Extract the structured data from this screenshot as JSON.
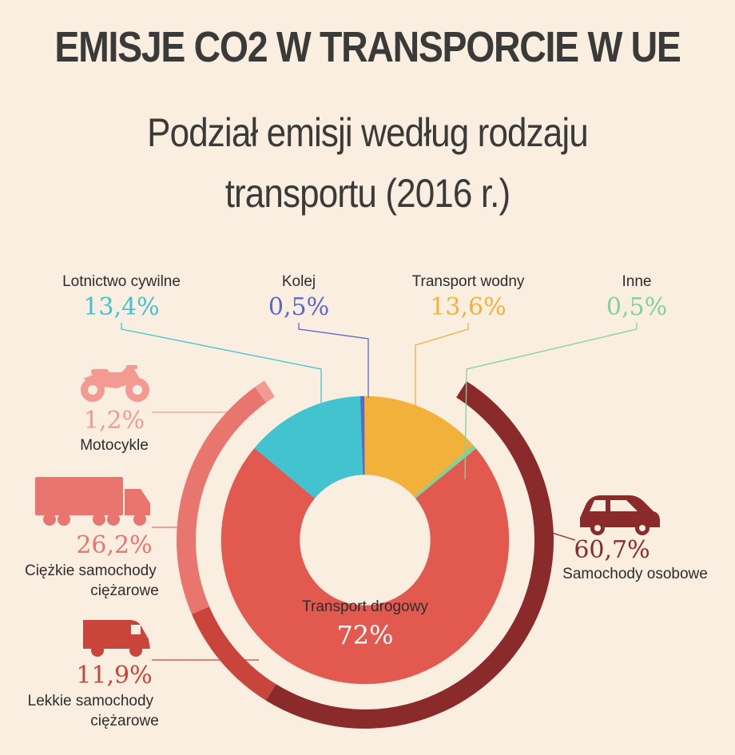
{
  "title": "EMISJE CO2 W TRANSPORCIE W UE",
  "subtitle_line1": "Podział emisji według rodzaju",
  "subtitle_line2": "transportu (2016 r.)",
  "colors": {
    "background": "#f9eee0",
    "road": "#e25a4f",
    "aviation": "#42c3cf",
    "rail": "#5a69c8",
    "water": "#f2b13a",
    "other": "#7fd39a",
    "cars": "#8b2a2a",
    "heavy_trucks": "#e9756f",
    "light_trucks": "#c9453c",
    "motorcycles": "#f39a93"
  },
  "chart_data": [
    {
      "type": "pie",
      "variant": "donut",
      "slices": [
        {
          "label": "Transport drogowy",
          "value": 72,
          "value_label": "72%",
          "color": "#e25a4f",
          "icon": "none"
        },
        {
          "label": "Lotnictwo cywilne",
          "value": 13.4,
          "value_label": "13,4%",
          "color": "#42c3cf",
          "icon": "none"
        },
        {
          "label": "Kolej",
          "value": 0.5,
          "value_label": "0,5%",
          "color": "#5a69c8",
          "icon": "none"
        },
        {
          "label": "Transport wodny",
          "value": 13.6,
          "value_label": "13,6%",
          "color": "#f2b13a",
          "icon": "none"
        },
        {
          "label": "Inne",
          "value": 0.5,
          "value_label": "0,5%",
          "color": "#7fd39a",
          "icon": "none"
        }
      ]
    },
    {
      "type": "pie",
      "variant": "outer-ring-breakdown-of-road-transport",
      "slices": [
        {
          "label": "Samochody osobowe",
          "value": 60.7,
          "value_label": "60,7%",
          "color": "#8b2a2a",
          "icon": "car-icon"
        },
        {
          "label": "Lekkie samochody ciężarowe",
          "value": 11.9,
          "value_label": "11,9%",
          "color": "#c9453c",
          "icon": "van-icon"
        },
        {
          "label": "Ciężkie samochody ciężarowe",
          "value": 26.2,
          "value_label": "26,2%",
          "color": "#e9756f",
          "icon": "truck-icon"
        },
        {
          "label": "Motocykle",
          "value": 1.2,
          "value_label": "1,2%",
          "color": "#f39a93",
          "icon": "motorcycle-icon"
        }
      ]
    }
  ]
}
